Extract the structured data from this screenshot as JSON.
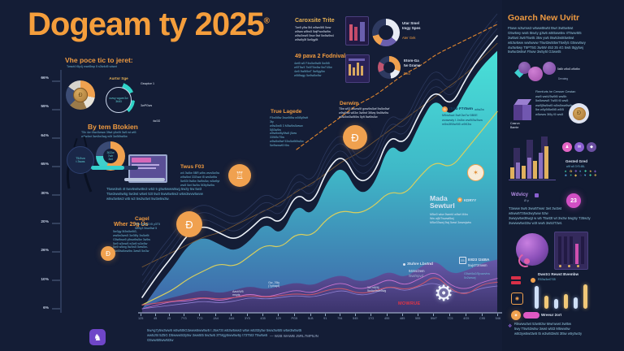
{
  "meta": {
    "title": "Dogeam ty 2025",
    "title_sup": "®"
  },
  "colors": {
    "background": "#141d36",
    "accent_orange": "#f59e3c",
    "teal": "#3fd9d4",
    "purple": "#4c3f82",
    "pink": "#da55c5",
    "red": "#e23445"
  },
  "left": {
    "sec1_title": "Vhe poce tic to jeret:",
    "sec1_sub": "Twsct4 t5y4j rvwd5wp 5 s3tv4d5 vdswt",
    "gauge_title": "Aurtsr Sge",
    "gauge_center": "wvwy wgwm3w 3t4t3",
    "gauge_label1": "Gswptce 1",
    "gauge_label2": "3wPGws",
    "gauge_tag": "4w/3G",
    "sec2_title": "By tem Btokien",
    "sec2_sub": [
      "T5v 4w t3wv5www 3ftwt y5w5t 3w5 wt wt5",
      "w3w4wt 3wv5w3wg w5t 3w3t5wt5w"
    ],
    "mascot_text": [
      "T5/4vw",
      "t 3wws"
    ],
    "ring_text": [
      "3t22w",
      "7wtr",
      "3wt"
    ],
    "para": [
      "T5ww3w5 4t 5wv5w5wt5v3 w53 5 g5w5www5wg 5w3y 5w 5w3",
      "T5w3ww5w5g 5w3wt w5wt 53t 5w3 5ww5w5w3 w5w3wvw5wvw",
      "w5w3w5w3 wt5 w3 5w3w3wt 5w3w5w3w."
    ],
    "sec3_title": "Wher 29g Us",
    "sec3_lines": [
      "5w3gy 5t3w5w5t3,",
      "ww5w3ww5 3w3t5y 3w5w5t",
      "G5w5ww5 y5ww5w5w 3w5w",
      "5w5 w3ww5 w3w5 w3w5w",
      "5w5 w5wg 5w3w5 5ww5w-",
      "t5w55w5ww5w 3ww5 5w3w"
    ],
    "sec4_title": "Cagel",
    "sec4_lines": [
      "F5w y5wy3 t5 y3T5",
      "5w5y3 5ww5wt 5"
    ],
    "sec5_title": "Twus F03",
    "sec5_lines": [
      "w4 3w5w 5BR,w5w wvw5w3w",
      "w5w5wt 33Gww t5 ww5w5w",
      "5w53t 5w5w 5w5w5w, w5w5yt",
      "ww5 5wt 5w3w 5t3ty5w5w"
    ]
  },
  "mid": {
    "b1_title": "Caroxsite Trite",
    "b1_lines": [
      "Twr5 y5w 5t4 w5wv5t5 5ww",
      "w5ww w5tw5 5wjFww5w5w",
      "w5w3ww5 5ww 5wf 5w5w5w4",
      "w5w5y5f 5w5gy5t"
    ],
    "b1_stat_title": [
      "Utar Smel",
      "Imgy Spes"
    ],
    "b1_stat_tag": "Ater Gek",
    "b2_title": "49 pava 2 Fodnival",
    "b2_lines": [
      "4wt5 w5 F4w5w5w5t 5w5t5",
      "w5T5w3 Tw5T5w5w 5wT45w",
      "4w5 5w5t5wT 5w5gy5w",
      "w5t5wgy 5w5w5w5w"
    ],
    "b2_stat_title": [
      "Etom-Ga",
      "tw Grame"
    ],
    "b2_stat_tag": "Ded",
    "b3_title": "True Lagede",
    "b3_lines": [
      "F5w5t5w 3ww5t5w w5t5y5wft 3ty",
      "w5w3wt5 3 M5w5w5www 5j53w5w",
      "w5w5wt5y5fw5 j5ww 33W5cT5w",
      "w5w5w5wf 53w5w5t5w5w",
      "5w5wwwt5 t5w"
    ],
    "b4_title": "Derwim",
    "b4_lines": [
      "T5w w53 3www5f gww5w5wf 5w5w5wf",
      "w5w5wk w53w 3w5wf 3t5wy 5w5fw5w",
      "w5w3wt3w5t5w 5yft 5wt5w5w"
    ]
  },
  "chart_overlays": {
    "btc_icon": "Ð",
    "btc_title": "t5Ab F7rtwm",
    "btc_tag": "w4w2w",
    "btc_lines": [
      "M5wAwd 3wK3w7w 5B0E",
      "wvawwty t Jw5w ww5t3w3ww",
      "m5w3B5w5t5 w5K3w"
    ],
    "mada_title": [
      "Mada",
      "Sewturl"
    ],
    "mada_badge": "KDRYY",
    "mada_lines": [
      "M5w3 wkw 5wmt4 w5wt M4w",
      "Ww wj5/7wwwt5wj",
      "M5w33wwj 5wj 5wwt 3wwwjwtw"
    ],
    "stat1_title": "3tuhre Lbvtnd",
    "stat1_sub": "94ms/2em",
    "stat1_sub2": "/5wt/npvd",
    "stat2_icon": "EB",
    "stat2_title": "E823 t24BA",
    "stat2_sub": "5wj4T2mwm",
    "stat2_lines": [
      "G5wb5a2/5jvawvhw",
      "5v2wwwj"
    ],
    "red_label": "MOWRUE",
    "ann1": [
      "Gw_76ly",
      "(7ymapt)"
    ],
    "ann2": [
      "Aavt/W5",
      "mspts"
    ],
    "ann3": [
      "1w m5/4j",
      "5wAw3ww5wg"
    ]
  },
  "right": {
    "title": "Goarch New Uvitr",
    "intro": [
      "F5ww w3wmw3 w5wwt5w5t t5wt 3wt5w5wt",
      "G5w5wy ww5 t5w4y g3w5 w5t5ww5w 4T5ww5t5",
      "3wt5wt 3w5T5wt5 35w yw5 t5w53w5t5w5wt",
      "w53w5ww ww5www T5wt3w5t5wT5wfy5 G5ww5wy",
      "4w3w5wy T5PT5G 3w5W 453 35 4G 5w5 t5gy5wj",
      "5w5w3w5wt F5ww 3w5y5t G3wwt5"
    ],
    "berries_cap1": "5at5r   w5w3 w5w5w",
    "berries_cap2": "Denateg",
    "cube_note": [
      "Flemfurts he Cersser Cewtan",
      "ww5 wst4/5w5t5 ww5b",
      "5w5www5 7w55 t5 ww5",
      "ww5j5w5wt5 w5w5ww5w5w",
      "5w w5y5t5w5t5 w5/5",
      "w5www 3t5y t5 ww5"
    ],
    "cube_cap": [
      "Casrun",
      "Bamte"
    ],
    "coin_glyph": "Ð",
    "gested_title": "Gested Gred",
    "gested_sub": "w5f w5 3Y5 4BL",
    "icon_grid": [
      "♠",
      "✿",
      "❖",
      "♦",
      "✚",
      "★",
      "◈",
      "♣",
      "✶",
      "◆",
      "☆",
      "♥",
      "✚",
      "❖"
    ],
    "wdvicy": "Wdvicy",
    "wdvicy_sub": "Ø p",
    "pink_count": "23",
    "para": [
      "T3www 5w5 3ww5Twwr 3wt 3w3wt",
      "w5ww5T35w3wy5ww 53w",
      "3wwyw5w35wgt w w5 T5wt3t wt 3w3w 5wg5y T35w3y",
      "3wwww5w33w w3t ww5 3w53T3wt."
    ],
    "dwstrz_title": "Dwstrz Rewst Bvembw",
    "dwstrz_sub": "R53w3wt7/35",
    "pill_label": "Wreeur 2ort",
    "outro": [
      "R5www3wt 53w5t3w Mwmwwt 3wt5w",
      "5wy T5w53w5w 3wwt w5t3 M5ww5w",
      "w5t3yw5wt3w5 t5 w3w5t3w5t 3t5w w5y5w3y"
    ]
  },
  "footer": {
    "lines": [
      "5wAg7y5w3ww5 w5w5t5G3www5ww5w5 t J5w73t w53w5ww3 w5w w53t3y5w 5ww3w5t5 w5w3w5wt5",
      "ww5J5t 5Z5G  D5www5t3y5w 3ww5t5 5w3w5 3TMgy5ww5w5y t73T5t3 T5w5w5",
      "G5ww5t5ww5t3w"
    ]
  },
  "chart_data": {
    "type": "area",
    "title": "Dogeam ty 2025",
    "xlabel": "",
    "ylabel": "%",
    "ylim": [
      6,
      66
    ],
    "grid": false,
    "legend_note": "— W2B WAWB J5RL7MP5JN",
    "y_ticks": [
      "66%",
      "59%",
      "64%",
      "65%",
      "30%",
      "20%",
      "26%",
      "10%",
      "6%"
    ],
    "categories": [
      "125",
      "45",
      "25",
      "7Y3",
      "7YD",
      "JA4",
      "4A5",
      "3Y5",
      "435",
      "129",
      "PG5",
      "5LB",
      "91",
      "794",
      "545",
      "17G",
      "455",
      "485",
      "555",
      "5W7",
      "7C5",
      "4G5",
      "C95",
      "546"
    ],
    "series": [
      {
        "name": "doge-adoption-area",
        "kind": "area",
        "fill": "gradTeal",
        "values": [
          6,
          12,
          17,
          23,
          25,
          23,
          21,
          24,
          29,
          25,
          34,
          30,
          40,
          44,
          36,
          38,
          50,
          46,
          55,
          62,
          56,
          64,
          70,
          74
        ]
      },
      {
        "name": "base-band-area",
        "kind": "area",
        "fill": "gradPurple",
        "opacity": 0.93,
        "values": [
          6,
          8,
          9,
          10,
          11,
          10,
          11,
          12,
          11,
          12,
          13,
          12,
          14,
          15,
          13,
          14,
          16,
          14,
          17,
          19,
          15,
          16,
          18,
          19
        ]
      },
      {
        "name": "trend-brown",
        "kind": "line",
        "color": "#7d5a33",
        "width": 0.8,
        "values": [
          17,
          19,
          21,
          23,
          25,
          26,
          28,
          30,
          32,
          34,
          37,
          39,
          42,
          45,
          47,
          50,
          53,
          56,
          59,
          62,
          65,
          68,
          72,
          76
        ]
      },
      {
        "name": "trend-yellow",
        "kind": "line",
        "color": "#d9cf5e",
        "width": 1.2,
        "values": [
          7,
          9,
          11,
          14,
          16,
          18,
          17,
          20,
          23,
          22,
          26,
          25,
          30,
          32,
          31,
          33,
          37,
          36,
          41,
          45,
          43,
          48,
          53,
          58
        ]
      },
      {
        "name": "trend-white",
        "kind": "line",
        "color": "#eef3fa",
        "width": 1.6,
        "echo": 3,
        "values": [
          9,
          15,
          20,
          26,
          28,
          26,
          24,
          27,
          31,
          28,
          37,
          33,
          43,
          47,
          39,
          41,
          52,
          49,
          58,
          64,
          59,
          67,
          73,
          78
        ]
      },
      {
        "name": "forecast-dashed",
        "kind": "line",
        "color": "#e0862f",
        "width": 1.1,
        "dash": "4 3",
        "values": [
          null,
          null,
          null,
          null,
          null,
          null,
          null,
          null,
          null,
          null,
          48,
          51,
          54,
          57,
          60,
          62,
          65,
          68,
          70,
          73,
          75,
          77,
          79,
          81
        ]
      },
      {
        "name": "band-pink",
        "kind": "line",
        "color": "#c873cf",
        "width": 0.9,
        "values": [
          6,
          7,
          8,
          8,
          9,
          8,
          9,
          10,
          9,
          10,
          11,
          10,
          12,
          13,
          11,
          12,
          14,
          12,
          14,
          16,
          12,
          11,
          13,
          14
        ]
      },
      {
        "name": "band-violet",
        "kind": "line",
        "color": "#8f7fd0",
        "width": 0.8,
        "values": [
          6,
          6.5,
          7,
          7.5,
          8,
          7.5,
          8,
          9,
          8.5,
          9,
          9.5,
          9,
          10,
          11,
          9.5,
          10,
          12,
          10.5,
          12,
          13,
          10.5,
          10,
          11.5,
          12
        ]
      },
      {
        "name": "band-red",
        "kind": "line",
        "color": "#c2556e",
        "width": 1.1,
        "values": [
          7,
          7.5,
          8,
          8.5,
          9,
          8.5,
          9,
          9.5,
          9,
          9.5,
          10,
          9.5,
          11,
          11.5,
          10,
          10.5,
          12,
          11,
          12,
          15,
          11,
          9.5,
          12.5,
          13
        ]
      }
    ]
  }
}
